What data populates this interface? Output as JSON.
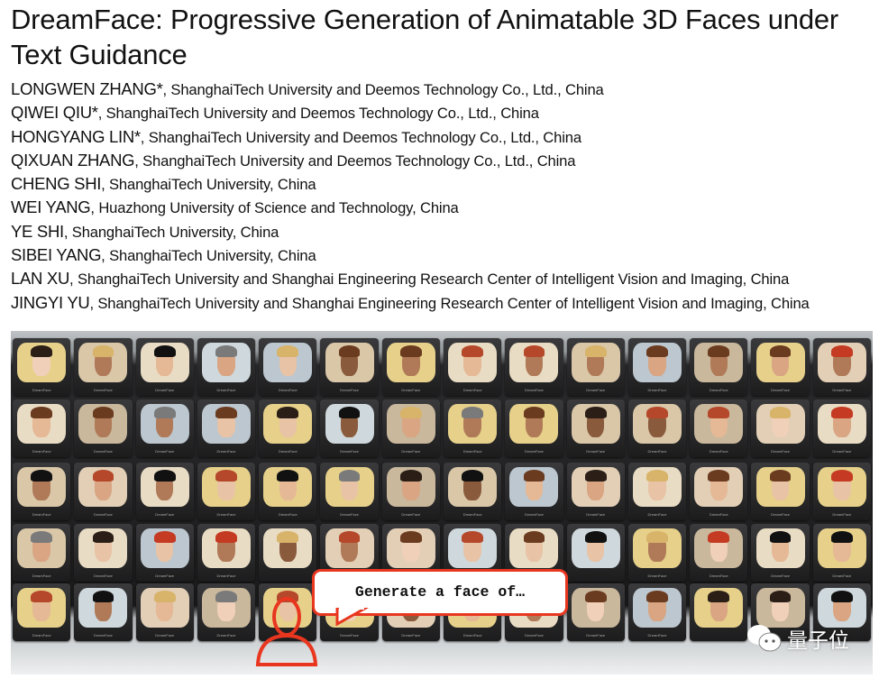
{
  "title": "DreamFace: Progressive Generation of Animatable 3D Faces under Text Guidance",
  "authors": [
    {
      "name": "LONGWEN ZHANG*",
      "affiliation": ", ShanghaiTech University and Deemos Technology Co., Ltd., China"
    },
    {
      "name": "QIWEI QIU*",
      "affiliation": ", ShanghaiTech University and Deemos Technology Co., Ltd., China"
    },
    {
      "name": "HONGYANG LIN*",
      "affiliation": ", ShanghaiTech University and Deemos Technology Co., Ltd., China"
    },
    {
      "name": "QIXUAN ZHANG",
      "affiliation": ", ShanghaiTech University and Deemos Technology Co., Ltd., China"
    },
    {
      "name": "CHENG SHI",
      "affiliation": ", ShanghaiTech University, China"
    },
    {
      "name": "WEI YANG",
      "affiliation": ", Huazhong University of Science and Technology, China"
    },
    {
      "name": "YE SHI",
      "affiliation": ", ShanghaiTech University, China"
    },
    {
      "name": "SIBEI YANG",
      "affiliation": ", ShanghaiTech University, China"
    },
    {
      "name": "LAN XU",
      "affiliation": ", ShanghaiTech University and Shanghai Engineering Research Center of Intelligent Vision and Imaging, China"
    },
    {
      "name": "JINGYI YU",
      "affiliation": ", ShanghaiTech University and Shanghai Engineering Research Center of Intelligent Vision and Imaging, China"
    }
  ],
  "figure": {
    "bubble_text": "Generate a face of…",
    "tv_label": "DreamFace",
    "accent_color": "#e8361f",
    "icons": [
      "person-icon",
      "speech-bubble",
      "wechat-icon"
    ]
  },
  "watermark": "量子位"
}
